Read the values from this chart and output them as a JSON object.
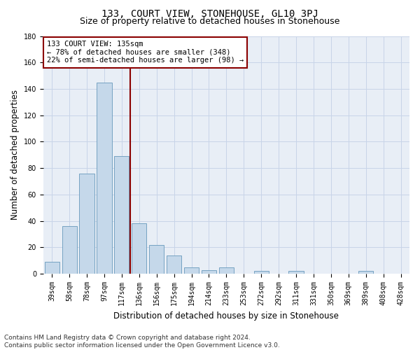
{
  "title": "133, COURT VIEW, STONEHOUSE, GL10 3PJ",
  "subtitle": "Size of property relative to detached houses in Stonehouse",
  "xlabel": "Distribution of detached houses by size in Stonehouse",
  "ylabel": "Number of detached properties",
  "bar_labels": [
    "39sqm",
    "58sqm",
    "78sqm",
    "97sqm",
    "117sqm",
    "136sqm",
    "156sqm",
    "175sqm",
    "194sqm",
    "214sqm",
    "233sqm",
    "253sqm",
    "272sqm",
    "292sqm",
    "311sqm",
    "331sqm",
    "350sqm",
    "369sqm",
    "389sqm",
    "408sqm",
    "428sqm"
  ],
  "bar_values": [
    9,
    36,
    76,
    145,
    89,
    38,
    22,
    14,
    5,
    3,
    5,
    0,
    2,
    0,
    2,
    0,
    0,
    0,
    2,
    0,
    0
  ],
  "bar_color": "#c5d8ea",
  "bar_edgecolor": "#6699bb",
  "vline_x_index": 5,
  "vline_color": "#8b0000",
  "annotation_text": "133 COURT VIEW: 135sqm\n← 78% of detached houses are smaller (348)\n22% of semi-detached houses are larger (98) →",
  "annotation_box_edgecolor": "#8b0000",
  "annotation_box_facecolor": "#ffffff",
  "grid_color": "#c8d4e8",
  "background_color": "#e8eef6",
  "ylim": [
    0,
    180
  ],
  "yticks": [
    0,
    20,
    40,
    60,
    80,
    100,
    120,
    140,
    160,
    180
  ],
  "footer_line1": "Contains HM Land Registry data © Crown copyright and database right 2024.",
  "footer_line2": "Contains public sector information licensed under the Open Government Licence v3.0.",
  "title_fontsize": 10,
  "subtitle_fontsize": 9,
  "axis_label_fontsize": 8.5,
  "tick_fontsize": 7,
  "annotation_fontsize": 7.5,
  "footer_fontsize": 6.5
}
